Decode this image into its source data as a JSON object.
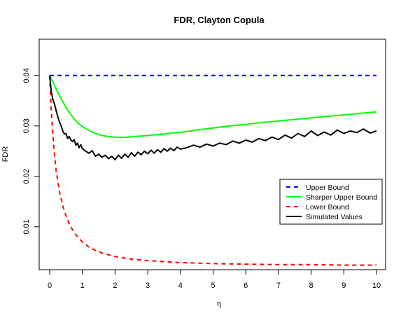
{
  "chart_data": {
    "type": "line",
    "title": "FDR, Clayton Copula",
    "xlabel": "η",
    "ylabel": "FDR",
    "xlim": [
      0,
      10
    ],
    "ylim": [
      0.0015,
      0.0472
    ],
    "x_ticks": [
      0,
      1,
      2,
      3,
      4,
      5,
      6,
      7,
      8,
      9,
      10
    ],
    "x_tick_labels": [
      "0",
      "1",
      "2",
      "3",
      "4",
      "5",
      "6",
      "7",
      "8",
      "9",
      "10"
    ],
    "y_ticks": [
      0.01,
      0.02,
      0.03,
      0.04
    ],
    "y_tick_labels": [
      "0.01",
      "0.02",
      "0.03",
      "0.04"
    ],
    "grid": false,
    "legend_position": "right",
    "series": [
      {
        "name": "Upper Bound",
        "color": "#0000ff",
        "dash": "dashed",
        "x": [
          0,
          10
        ],
        "values": [
          0.04,
          0.04
        ]
      },
      {
        "name": "Sharper Upper Bound",
        "color": "#00ff00",
        "dash": "solid",
        "x": [
          0,
          0.1,
          0.2,
          0.3,
          0.4,
          0.5,
          0.6,
          0.7,
          0.8,
          0.9,
          1.0,
          1.2,
          1.4,
          1.6,
          1.8,
          2.0,
          2.2,
          2.4,
          2.6,
          2.8,
          3.0,
          3.3,
          3.6,
          3.9,
          4.2,
          4.5,
          5.0,
          5.5,
          6.0,
          6.5,
          7.0,
          7.5,
          8.0,
          8.5,
          9.0,
          9.5,
          10.0
        ],
        "values": [
          0.04,
          0.0387,
          0.0373,
          0.036,
          0.0348,
          0.0337,
          0.0327,
          0.0318,
          0.031,
          0.0304,
          0.0299,
          0.0291,
          0.0285,
          0.0281,
          0.0279,
          0.0278,
          0.0277,
          0.0278,
          0.0279,
          0.028,
          0.0281,
          0.0283,
          0.0285,
          0.0287,
          0.0289,
          0.0292,
          0.0296,
          0.03,
          0.0303,
          0.0307,
          0.031,
          0.0313,
          0.0316,
          0.0319,
          0.0322,
          0.0325,
          0.0328
        ]
      },
      {
        "name": "Lower Bound",
        "color": "#ff0000",
        "dash": "dashed",
        "x": [
          0,
          0.05,
          0.1,
          0.15,
          0.2,
          0.3,
          0.4,
          0.5,
          0.6,
          0.7,
          0.8,
          1.0,
          1.2,
          1.4,
          1.6,
          2.0,
          2.5,
          3.0,
          4.0,
          5.0,
          6.0,
          7.0,
          8.0,
          9.0,
          10.0
        ],
        "values": [
          0.04,
          0.033,
          0.028,
          0.024,
          0.021,
          0.017,
          0.0142,
          0.0122,
          0.0106,
          0.0094,
          0.0084,
          0.007,
          0.006,
          0.0053,
          0.0048,
          0.0041,
          0.0036,
          0.0033,
          0.0029,
          0.0027,
          0.0026,
          0.0025,
          0.0025,
          0.0024,
          0.0024
        ]
      },
      {
        "name": "Simulated Values",
        "color": "#000000",
        "dash": "solid",
        "x": [
          0,
          0.05,
          0.1,
          0.15,
          0.2,
          0.25,
          0.3,
          0.35,
          0.4,
          0.45,
          0.5,
          0.55,
          0.6,
          0.65,
          0.7,
          0.75,
          0.8,
          0.85,
          0.9,
          0.95,
          1.0,
          1.1,
          1.2,
          1.3,
          1.4,
          1.5,
          1.6,
          1.7,
          1.8,
          1.9,
          2.0,
          2.1,
          2.2,
          2.3,
          2.4,
          2.5,
          2.6,
          2.7,
          2.8,
          2.9,
          3.0,
          3.1,
          3.2,
          3.3,
          3.4,
          3.5,
          3.6,
          3.7,
          3.8,
          3.9,
          4.0,
          4.2,
          4.4,
          4.6,
          4.8,
          5.0,
          5.2,
          5.4,
          5.6,
          5.8,
          6.0,
          6.2,
          6.4,
          6.6,
          6.8,
          7.0,
          7.2,
          7.4,
          7.6,
          7.8,
          8.0,
          8.2,
          8.4,
          8.6,
          8.8,
          9.0,
          9.2,
          9.4,
          9.6,
          9.8,
          10.0
        ],
        "values": [
          0.04,
          0.0368,
          0.0352,
          0.0343,
          0.033,
          0.0318,
          0.0308,
          0.03,
          0.029,
          0.0284,
          0.0285,
          0.0275,
          0.0279,
          0.0272,
          0.0269,
          0.0273,
          0.0262,
          0.0266,
          0.0257,
          0.0263,
          0.0255,
          0.025,
          0.0246,
          0.0251,
          0.024,
          0.0244,
          0.0238,
          0.0242,
          0.0235,
          0.024,
          0.0233,
          0.0242,
          0.0236,
          0.0244,
          0.0238,
          0.0247,
          0.024,
          0.0248,
          0.0243,
          0.025,
          0.0245,
          0.0252,
          0.0246,
          0.0253,
          0.0248,
          0.0255,
          0.025,
          0.0256,
          0.0251,
          0.0258,
          0.0254,
          0.0257,
          0.0262,
          0.0258,
          0.0264,
          0.026,
          0.0266,
          0.0263,
          0.027,
          0.0266,
          0.0272,
          0.0268,
          0.0275,
          0.0271,
          0.0278,
          0.0273,
          0.0282,
          0.0276,
          0.0285,
          0.0279,
          0.029,
          0.0281,
          0.0288,
          0.0282,
          0.0292,
          0.0285,
          0.029,
          0.0287,
          0.0294,
          0.0286,
          0.029
        ]
      }
    ]
  }
}
